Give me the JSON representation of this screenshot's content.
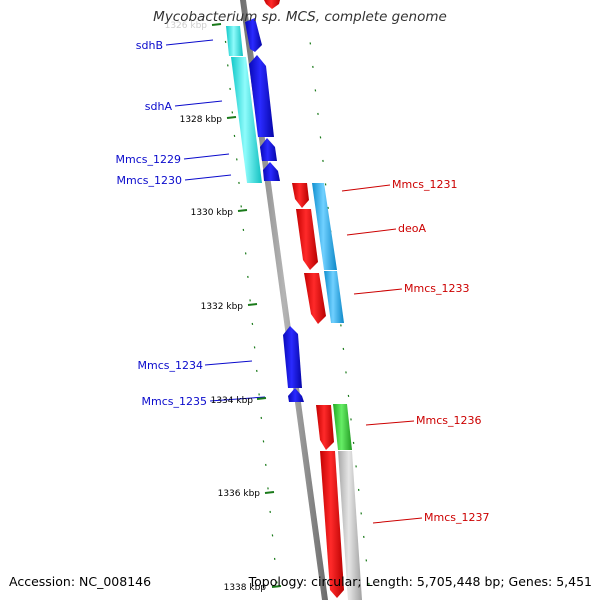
{
  "title": "Mycobacterium sp. MCS, complete genome",
  "accession": "Accession: NC_008146",
  "topology": "Topology: circular; Length: 5,705,448 bp; Genes: 5,451",
  "colors": {
    "backbone": "#8c8c8c",
    "tick": "#1a7a1a",
    "reverse_label": "#0a0acc",
    "forward_label": "#cc0000",
    "gene_blue": "#1010e8",
    "gene_red": "#ee1111",
    "cog_cyan": "#20e0e0",
    "cog_light_blue": "#20b0e8",
    "cog_green": "#33cc33",
    "cog_grey": "#c0c0c0"
  },
  "kbp_labels": [
    "1326 kbp",
    "1328 kbp",
    "1330 kbp",
    "1332 kbp",
    "1334 kbp",
    "1336 kbp",
    "1338 kbp"
  ],
  "reverse_genes": [
    {
      "label": "sdhB",
      "cog": "cyan"
    },
    {
      "label": "sdhA",
      "cog": "cyan"
    },
    {
      "label": "Mmcs_1229",
      "cog": "cyan"
    },
    {
      "label": "Mmcs_1230",
      "cog": "cyan"
    },
    {
      "label": "Mmcs_1234",
      "cog": "none"
    },
    {
      "label": "Mmcs_1235",
      "cog": "none"
    }
  ],
  "forward_genes": [
    {
      "label": "Mmcs_1231",
      "cog": "light-blue"
    },
    {
      "label": "deoA",
      "cog": "light-blue"
    },
    {
      "label": "Mmcs_1233",
      "cog": "light-blue"
    },
    {
      "label": "Mmcs_1236",
      "cog": "green"
    },
    {
      "label": "Mmcs_1237",
      "cog": "grey"
    }
  ]
}
